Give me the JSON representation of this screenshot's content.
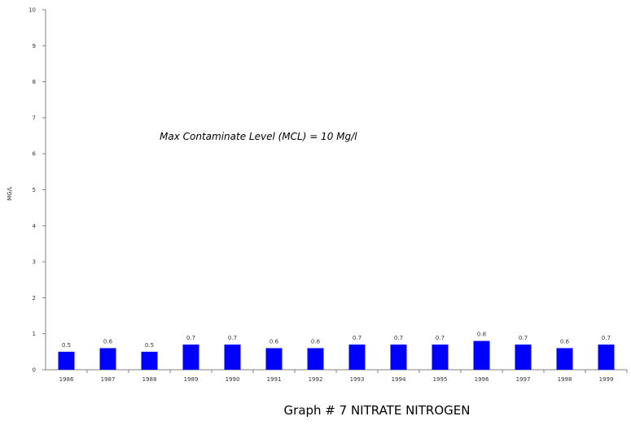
{
  "chart_data": {
    "type": "bar",
    "title": "",
    "caption": "Graph # 7 NITRATE NITROGEN",
    "annotation": "Max Contaminate Level (MCL) = 10 Mg/l",
    "ylabel": "MG/L",
    "xlabel": "",
    "ylim": [
      0,
      10
    ],
    "yticks": [
      "0",
      "1",
      "2",
      "3",
      "4",
      "5",
      "6",
      "7",
      "8",
      "9",
      "10"
    ],
    "categories": [
      "1986",
      "1987",
      "1988",
      "1989",
      "1990",
      "1991",
      "1992",
      "1993",
      "1994",
      "1995",
      "1996",
      "1997",
      "1998",
      "1999"
    ],
    "values": [
      0.5,
      0.6,
      0.5,
      0.7,
      0.7,
      0.6,
      0.6,
      0.7,
      0.7,
      0.7,
      0.8,
      0.7,
      0.6,
      0.7
    ],
    "value_labels": [
      "0.5",
      "0.6",
      "0.5",
      "0.7",
      "0.7",
      "0.6",
      "0.6",
      "0.7",
      "0.7",
      "0.7",
      "0.8",
      "0.7",
      "0.6",
      "0.7"
    ],
    "bar_color": "#0000ff",
    "grid": false,
    "legend": "none"
  }
}
